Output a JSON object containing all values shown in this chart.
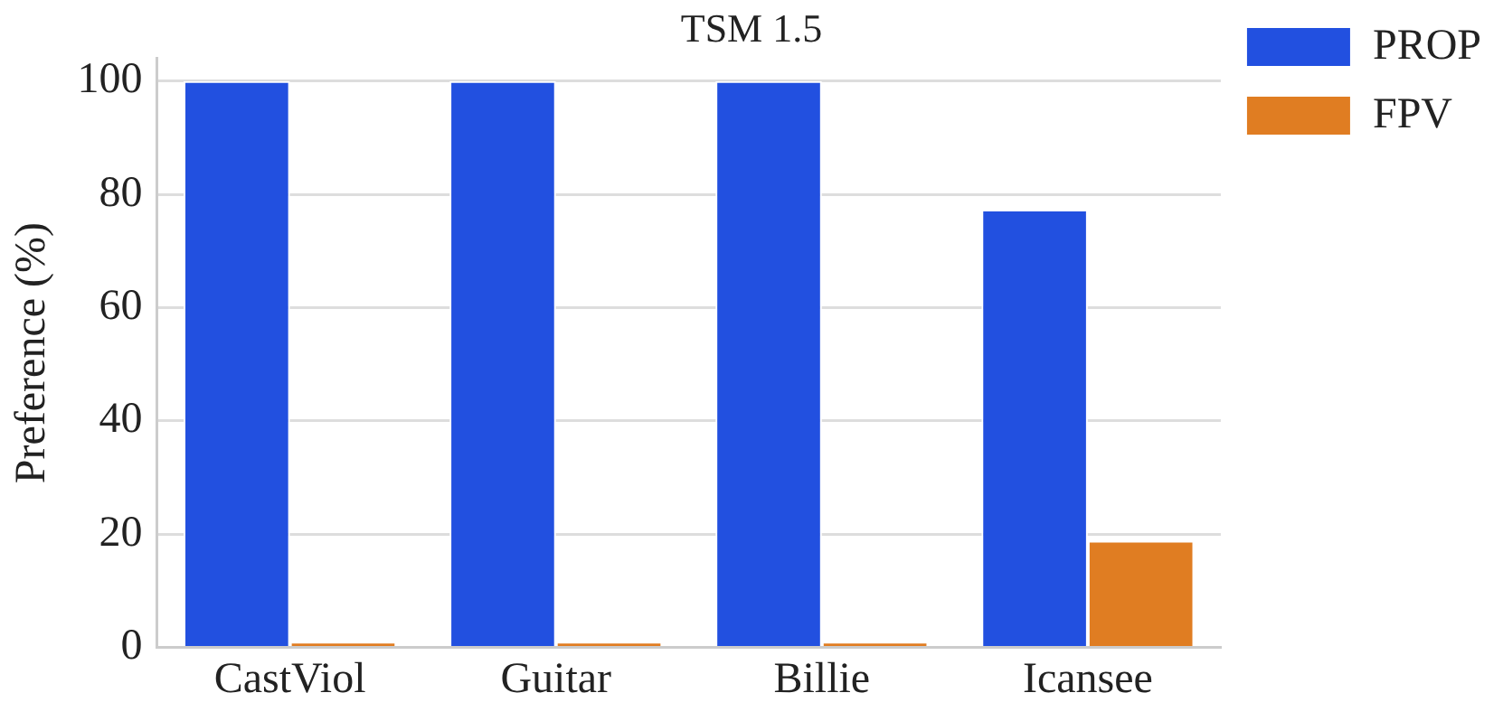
{
  "chart_data": {
    "type": "bar",
    "title": "TSM 1.5",
    "ylabel": "Preference (%)",
    "categories": [
      "CastViol",
      "Guitar",
      "Billie",
      "Icansee"
    ],
    "series": [
      {
        "name": "PROP",
        "color": "#2250e0",
        "values": [
          100,
          100,
          100,
          77.3
        ]
      },
      {
        "name": "FPV",
        "color": "#e07d22",
        "values": [
          1,
          1,
          1,
          18.8
        ]
      }
    ],
    "ylim": [
      0,
      104
    ],
    "yticks": [
      0,
      20,
      40,
      60,
      80,
      100
    ],
    "grid": "y",
    "legend": "top right"
  }
}
